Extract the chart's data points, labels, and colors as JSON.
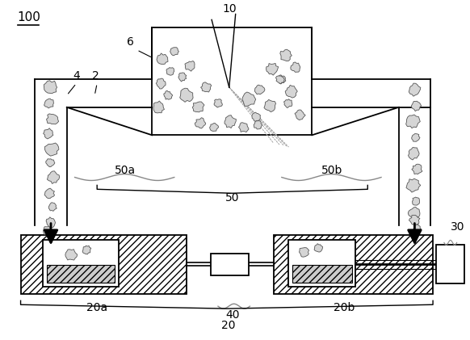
{
  "bg_color": "#ffffff",
  "line_color": "#000000",
  "label_100": "100",
  "label_2": "2",
  "label_4": "4",
  "label_6": "6",
  "label_10": "10",
  "label_20": "20",
  "label_20a": "20a",
  "label_20b": "20b",
  "label_30": "30",
  "label_40": "40",
  "label_50": "50",
  "label_50a": "50a",
  "label_50b": "50b"
}
